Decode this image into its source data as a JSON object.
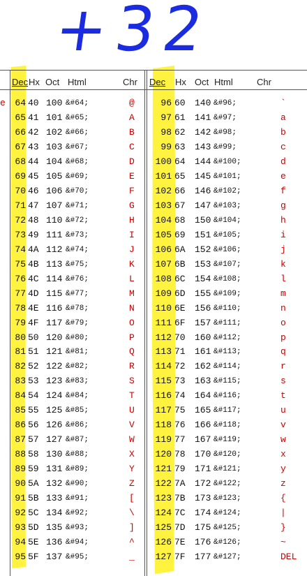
{
  "annotation": "+32",
  "left_fragment": "e",
  "header": [
    "Dec",
    "Hx",
    "Oct",
    "Html",
    "Chr"
  ],
  "left_rows": [
    [
      "64",
      "40",
      "100",
      "&#64;",
      "@"
    ],
    [
      "65",
      "41",
      "101",
      "&#65;",
      "A"
    ],
    [
      "66",
      "42",
      "102",
      "&#66;",
      "B"
    ],
    [
      "67",
      "43",
      "103",
      "&#67;",
      "C"
    ],
    [
      "68",
      "44",
      "104",
      "&#68;",
      "D"
    ],
    [
      "69",
      "45",
      "105",
      "&#69;",
      "E"
    ],
    [
      "70",
      "46",
      "106",
      "&#70;",
      "F"
    ],
    [
      "71",
      "47",
      "107",
      "&#71;",
      "G"
    ],
    [
      "72",
      "48",
      "110",
      "&#72;",
      "H"
    ],
    [
      "73",
      "49",
      "111",
      "&#73;",
      "I"
    ],
    [
      "74",
      "4A",
      "112",
      "&#74;",
      "J"
    ],
    [
      "75",
      "4B",
      "113",
      "&#75;",
      "K"
    ],
    [
      "76",
      "4C",
      "114",
      "&#76;",
      "L"
    ],
    [
      "77",
      "4D",
      "115",
      "&#77;",
      "M"
    ],
    [
      "78",
      "4E",
      "116",
      "&#78;",
      "N"
    ],
    [
      "79",
      "4F",
      "117",
      "&#79;",
      "O"
    ],
    [
      "80",
      "50",
      "120",
      "&#80;",
      "P"
    ],
    [
      "81",
      "51",
      "121",
      "&#81;",
      "Q"
    ],
    [
      "82",
      "52",
      "122",
      "&#82;",
      "R"
    ],
    [
      "83",
      "53",
      "123",
      "&#83;",
      "S"
    ],
    [
      "84",
      "54",
      "124",
      "&#84;",
      "T"
    ],
    [
      "85",
      "55",
      "125",
      "&#85;",
      "U"
    ],
    [
      "86",
      "56",
      "126",
      "&#86;",
      "V"
    ],
    [
      "87",
      "57",
      "127",
      "&#87;",
      "W"
    ],
    [
      "88",
      "58",
      "130",
      "&#88;",
      "X"
    ],
    [
      "89",
      "59",
      "131",
      "&#89;",
      "Y"
    ],
    [
      "90",
      "5A",
      "132",
      "&#90;",
      "Z"
    ],
    [
      "91",
      "5B",
      "133",
      "&#91;",
      "["
    ],
    [
      "92",
      "5C",
      "134",
      "&#92;",
      "\\"
    ],
    [
      "93",
      "5D",
      "135",
      "&#93;",
      "]"
    ],
    [
      "94",
      "5E",
      "136",
      "&#94;",
      "^"
    ],
    [
      "95",
      "5F",
      "137",
      "&#95;",
      "_"
    ]
  ],
  "right_rows": [
    [
      "96",
      "60",
      "140",
      "&#96;",
      "`"
    ],
    [
      "97",
      "61",
      "141",
      "&#97;",
      "a"
    ],
    [
      "98",
      "62",
      "142",
      "&#98;",
      "b"
    ],
    [
      "99",
      "63",
      "143",
      "&#99;",
      "c"
    ],
    [
      "100",
      "64",
      "144",
      "&#100;",
      "d"
    ],
    [
      "101",
      "65",
      "145",
      "&#101;",
      "e"
    ],
    [
      "102",
      "66",
      "146",
      "&#102;",
      "f"
    ],
    [
      "103",
      "67",
      "147",
      "&#103;",
      "g"
    ],
    [
      "104",
      "68",
      "150",
      "&#104;",
      "h"
    ],
    [
      "105",
      "69",
      "151",
      "&#105;",
      "i"
    ],
    [
      "106",
      "6A",
      "152",
      "&#106;",
      "j"
    ],
    [
      "107",
      "6B",
      "153",
      "&#107;",
      "k"
    ],
    [
      "108",
      "6C",
      "154",
      "&#108;",
      "l"
    ],
    [
      "109",
      "6D",
      "155",
      "&#109;",
      "m"
    ],
    [
      "110",
      "6E",
      "156",
      "&#110;",
      "n"
    ],
    [
      "111",
      "6F",
      "157",
      "&#111;",
      "o"
    ],
    [
      "112",
      "70",
      "160",
      "&#112;",
      "p"
    ],
    [
      "113",
      "71",
      "161",
      "&#113;",
      "q"
    ],
    [
      "114",
      "72",
      "162",
      "&#114;",
      "r"
    ],
    [
      "115",
      "73",
      "163",
      "&#115;",
      "s"
    ],
    [
      "116",
      "74",
      "164",
      "&#116;",
      "t"
    ],
    [
      "117",
      "75",
      "165",
      "&#117;",
      "u"
    ],
    [
      "118",
      "76",
      "166",
      "&#118;",
      "v"
    ],
    [
      "119",
      "77",
      "167",
      "&#119;",
      "w"
    ],
    [
      "120",
      "78",
      "170",
      "&#120;",
      "x"
    ],
    [
      "121",
      "79",
      "171",
      "&#121;",
      "y"
    ],
    [
      "122",
      "7A",
      "172",
      "&#122;",
      "z"
    ],
    [
      "123",
      "7B",
      "173",
      "&#123;",
      "{"
    ],
    [
      "124",
      "7C",
      "174",
      "&#124;",
      "|"
    ],
    [
      "125",
      "7D",
      "175",
      "&#125;",
      "}"
    ],
    [
      "126",
      "7E",
      "176",
      "&#126;",
      "~"
    ],
    [
      "127",
      "7F",
      "177",
      "&#127;",
      "DEL"
    ]
  ]
}
